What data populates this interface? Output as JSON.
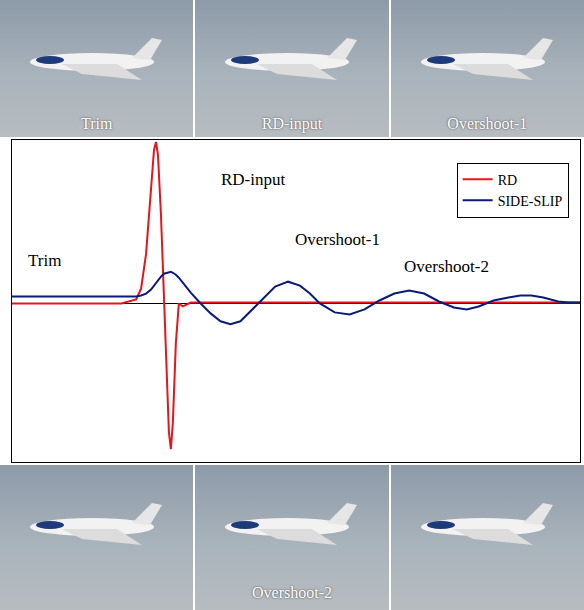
{
  "photo_strips": [
    {
      "captions": [
        "Trim",
        "RD-input",
        "Overshoot-1"
      ]
    },
    {
      "captions": [
        null,
        "Overshoot-2",
        null
      ]
    }
  ],
  "chart_data": {
    "type": "line",
    "x": [
      0,
      40,
      80,
      110,
      125,
      130,
      135,
      140,
      143,
      145,
      147,
      150,
      153,
      156,
      158,
      160,
      162,
      165,
      168,
      172,
      180,
      190,
      200,
      210,
      220,
      230,
      240,
      250,
      265,
      278,
      290,
      300,
      310,
      325,
      340,
      355,
      370,
      385,
      400,
      415,
      430,
      445,
      458,
      470,
      485,
      500,
      512,
      523,
      535,
      550,
      560,
      572
    ],
    "series": [
      {
        "name": "RD",
        "color": "#e8141b",
        "values": [
          0,
          0,
          0,
          0,
          4,
          15,
          50,
          120,
          155,
          163,
          150,
          90,
          10,
          -70,
          -130,
          -147,
          -120,
          -40,
          0,
          -3,
          1,
          1,
          1,
          1,
          1,
          1,
          1,
          1,
          1,
          1,
          1,
          1,
          1,
          1,
          1,
          1,
          1,
          1,
          1,
          1,
          1,
          1,
          1,
          1,
          1,
          1,
          1,
          1,
          1,
          1,
          1,
          1
        ]
      },
      {
        "name": "SIDE-SLIP",
        "color": "#0c1a78",
        "values": [
          7,
          7,
          7,
          7,
          7,
          8,
          10,
          14,
          18,
          21,
          24,
          27,
          30,
          31,
          32,
          32,
          31,
          29,
          26,
          21,
          11,
          0,
          -10,
          -18,
          -21,
          -18,
          -8,
          3,
          17,
          22,
          18,
          10,
          0,
          -9,
          -11,
          -6,
          3,
          10,
          13,
          10,
          2,
          -4,
          -6,
          -3,
          3,
          6,
          8,
          8,
          6,
          2,
          1,
          1
        ]
      }
    ],
    "xlim": [
      0,
      572
    ],
    "ylim": [
      -160,
      165
    ],
    "tick_labels": false,
    "grid": false,
    "legend": "upper right",
    "annotations": [
      {
        "text": "Trim",
        "x": 33,
        "y": 43
      },
      {
        "text": "RD-input",
        "x": 243,
        "y": 125
      },
      {
        "text": "Overshoot-1",
        "x": 328,
        "y": 65
      },
      {
        "text": "Overshoot-2",
        "x": 438,
        "y": 37
      }
    ]
  }
}
